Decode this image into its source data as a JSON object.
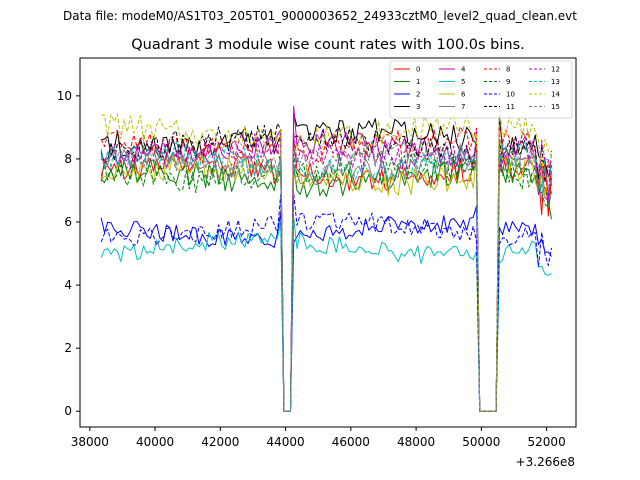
{
  "chart_data": {
    "type": "line",
    "suptitle": "Data file: modeM0/AS1T03_205T01_9000003652_24933cztM0_level2_quad_clean.evt",
    "title": "Quadrant 3 module wise count rates with 100.0s bins.",
    "xlabel": "",
    "ylabel": "",
    "x_offset_label": "+3.266e8",
    "xlim": [
      37700,
      52900
    ],
    "ylim": [
      -0.5,
      11.2
    ],
    "xticks": [
      38000,
      40000,
      42000,
      44000,
      46000,
      48000,
      50000,
      52000
    ],
    "yticks": [
      0,
      2,
      4,
      6,
      8,
      10
    ],
    "x_start": 38350,
    "x_end": 52200,
    "bin": 100,
    "gaps": [
      [
        43900,
        44200
      ],
      [
        49950,
        50500
      ]
    ],
    "grid": false,
    "legend_position": "top-right",
    "series": [
      {
        "name": "0",
        "color": "#ff0000",
        "dash": "solid",
        "mean": 7.6
      },
      {
        "name": "1",
        "color": "#008000",
        "dash": "solid",
        "mean": 7.4
      },
      {
        "name": "2",
        "color": "#0000ff",
        "dash": "solid",
        "mean": 5.7
      },
      {
        "name": "3",
        "color": "#000000",
        "dash": "solid",
        "mean": 8.6
      },
      {
        "name": "4",
        "color": "#bf00bf",
        "dash": "solid",
        "mean": 8.3
      },
      {
        "name": "5",
        "color": "#00bfbf",
        "dash": "solid",
        "mean": 5.2
      },
      {
        "name": "6",
        "color": "#bfbf00",
        "dash": "solid",
        "mean": 7.5
      },
      {
        "name": "7",
        "color": "#808080",
        "dash": "solid",
        "mean": 7.8
      },
      {
        "name": "8",
        "color": "#ff0000",
        "dash": "dashed",
        "mean": 8.4
      },
      {
        "name": "9",
        "color": "#008000",
        "dash": "dashed",
        "mean": 7.6
      },
      {
        "name": "10",
        "color": "#0000ff",
        "dash": "dashed",
        "mean": 5.8
      },
      {
        "name": "11",
        "color": "#000000",
        "dash": "dashed",
        "mean": 8.5
      },
      {
        "name": "12",
        "color": "#bf00bf",
        "dash": "dashed",
        "mean": 8.2
      },
      {
        "name": "13",
        "color": "#00bfbf",
        "dash": "dashed",
        "mean": 7.9
      },
      {
        "name": "14",
        "color": "#bfbf00",
        "dash": "dashed",
        "mean": 8.8
      },
      {
        "name": "15",
        "color": "#808080",
        "dash": "dashed",
        "mean": 8.0
      }
    ]
  }
}
